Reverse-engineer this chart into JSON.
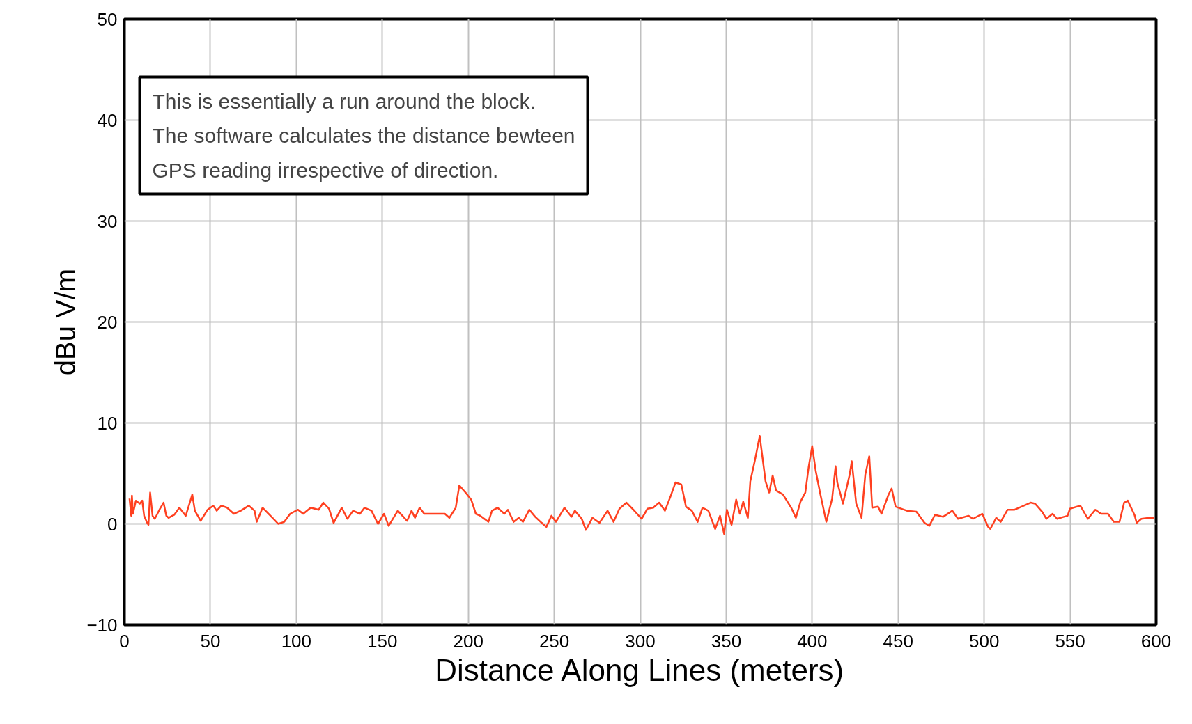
{
  "chart_data": {
    "type": "line",
    "xlabel": "Distance Along Lines (meters)",
    "ylabel": "dBu V/m",
    "annotations": [
      "This is essentially a run around the block.\nThe software calculates the distance bewteen\nGPS reading irrespective of direction."
    ],
    "xlim": [
      0,
      600
    ],
    "ylim": [
      -10,
      50
    ],
    "xticks": [
      0,
      50,
      100,
      150,
      200,
      250,
      300,
      350,
      400,
      450,
      500,
      550,
      600
    ],
    "yticks": [
      -10,
      0,
      10,
      20,
      30,
      40,
      50
    ],
    "grid": true,
    "marker": "none",
    "line_style": "solid",
    "series": [
      {
        "color": "#ff4020",
        "x": [
          3,
          4,
          4.4,
          5,
          6.7,
          9,
          10.4,
          11.5,
          13,
          14,
          15,
          16.4,
          17.7,
          20.4,
          22.8,
          24.4,
          25.7,
          29,
          32,
          35.7,
          39.5,
          41,
          44.4,
          48.4,
          51.7,
          53.7,
          56.4,
          59.7,
          63.7,
          67.7,
          72.4,
          75.7,
          77,
          80.4,
          85,
          89.5,
          93,
          96.4,
          101,
          104,
          108.4,
          113,
          115.7,
          119,
          121.7,
          126.4,
          129.7,
          133,
          137,
          139.7,
          143.7,
          147.5,
          151,
          153.7,
          159,
          164.4,
          167,
          169,
          171.7,
          174.4,
          179.7,
          186.4,
          189,
          192.7,
          194.8,
          198.4,
          201.7,
          204.4,
          207,
          211.7,
          213.8,
          217,
          221,
          223,
          226.4,
          229.4,
          231.8,
          235.5,
          238.9,
          242.7,
          245.4,
          248.4,
          251,
          255.9,
          260,
          262,
          266,
          268.4,
          272.2,
          276.3,
          281,
          284.5,
          287.9,
          292,
          296,
          300.8,
          304.2,
          307.6,
          311,
          314.4,
          317.8,
          320.5,
          323.9,
          326.6,
          330,
          333.4,
          336.2,
          339.6,
          343.6,
          346.4,
          348.8,
          350.4,
          353.1,
          355.8,
          357.9,
          359.9,
          362.6,
          364,
          366.7,
          369.5,
          372.9,
          375,
          377,
          379,
          383,
          387.8,
          390.5,
          393.2,
          396,
          398,
          400,
          402.1,
          404.8,
          408.2,
          411.6,
          413.6,
          414.6,
          417.9,
          421.8,
          423,
          425.6,
          428.7,
          430.9,
          433.2,
          434.9,
          438.3,
          440.3,
          444.4,
          446.2,
          448.5,
          455.1,
          460.6,
          465.3,
          468.1,
          471.4,
          476.1,
          481.5,
          484.8,
          490.9,
          493.5,
          498.9,
          502.3,
          503.6,
          507,
          509.6,
          513.6,
          517.7,
          521.7,
          527,
          529.6,
          533.7,
          536.2,
          539.8,
          542.4,
          548.5,
          549.9,
          555.9,
          560.3,
          564.6,
          568,
          572,
          575.4,
          578.7,
          581.4,
          583.5,
          587.4,
          588.7,
          591.4,
          596.2,
          599
        ],
        "values": [
          2.5,
          0.8,
          2.8,
          1,
          2.3,
          2,
          2.3,
          0.8,
          0.2,
          -0.1,
          3.1,
          0.8,
          0.5,
          1.4,
          2.1,
          0.8,
          0.6,
          0.9,
          1.6,
          0.8,
          2.9,
          1.3,
          0.3,
          1.4,
          1.8,
          1.3,
          1.8,
          1.6,
          1,
          1.3,
          1.8,
          1.3,
          0.2,
          1.6,
          0.8,
          0,
          0.2,
          1,
          1.4,
          1,
          1.6,
          1.4,
          2.1,
          1.5,
          0.1,
          1.6,
          0.5,
          1.3,
          1,
          1.6,
          1.3,
          0,
          1,
          -0.2,
          1.3,
          0.3,
          1.3,
          0.6,
          1.6,
          1,
          1,
          1,
          0.6,
          1.6,
          3.8,
          3.1,
          2.4,
          1,
          0.8,
          0.2,
          1.3,
          1.6,
          1,
          1.4,
          0.2,
          0.6,
          0.2,
          1.4,
          0.7,
          0.1,
          -0.3,
          0.8,
          0.2,
          1.6,
          0.7,
          1.3,
          0.5,
          -0.6,
          0.6,
          0.1,
          1.3,
          0.2,
          1.5,
          2.1,
          1.4,
          0.5,
          1.5,
          1.6,
          2.1,
          1.3,
          2.8,
          4.1,
          3.9,
          1.7,
          1.3,
          0.2,
          1.6,
          1.3,
          -0.5,
          0.8,
          -1,
          1.4,
          -0.1,
          2.4,
          1,
          2.2,
          0.6,
          4.2,
          6.3,
          8.7,
          4.2,
          3.1,
          4.8,
          3.3,
          2.9,
          1.6,
          0.6,
          2.2,
          3.1,
          5.7,
          7.7,
          5.2,
          2.9,
          0.2,
          2.5,
          5.7,
          4.1,
          2,
          4.9,
          6.2,
          2,
          0.6,
          4.9,
          6.7,
          1.6,
          1.7,
          1,
          2.9,
          3.5,
          1.7,
          1.3,
          1.2,
          0.1,
          -0.2,
          0.9,
          0.7,
          1.3,
          0.5,
          0.8,
          0.5,
          1,
          -0.3,
          -0.5,
          0.6,
          0.2,
          1.4,
          1.4,
          1.7,
          2.1,
          2,
          1.2,
          0.5,
          1,
          0.5,
          0.8,
          1.5,
          1.8,
          0.5,
          1.4,
          1,
          1,
          0.2,
          0.2,
          2.1,
          2.3,
          0.9,
          0.1,
          0.5,
          0.6,
          0.6
        ]
      }
    ]
  }
}
